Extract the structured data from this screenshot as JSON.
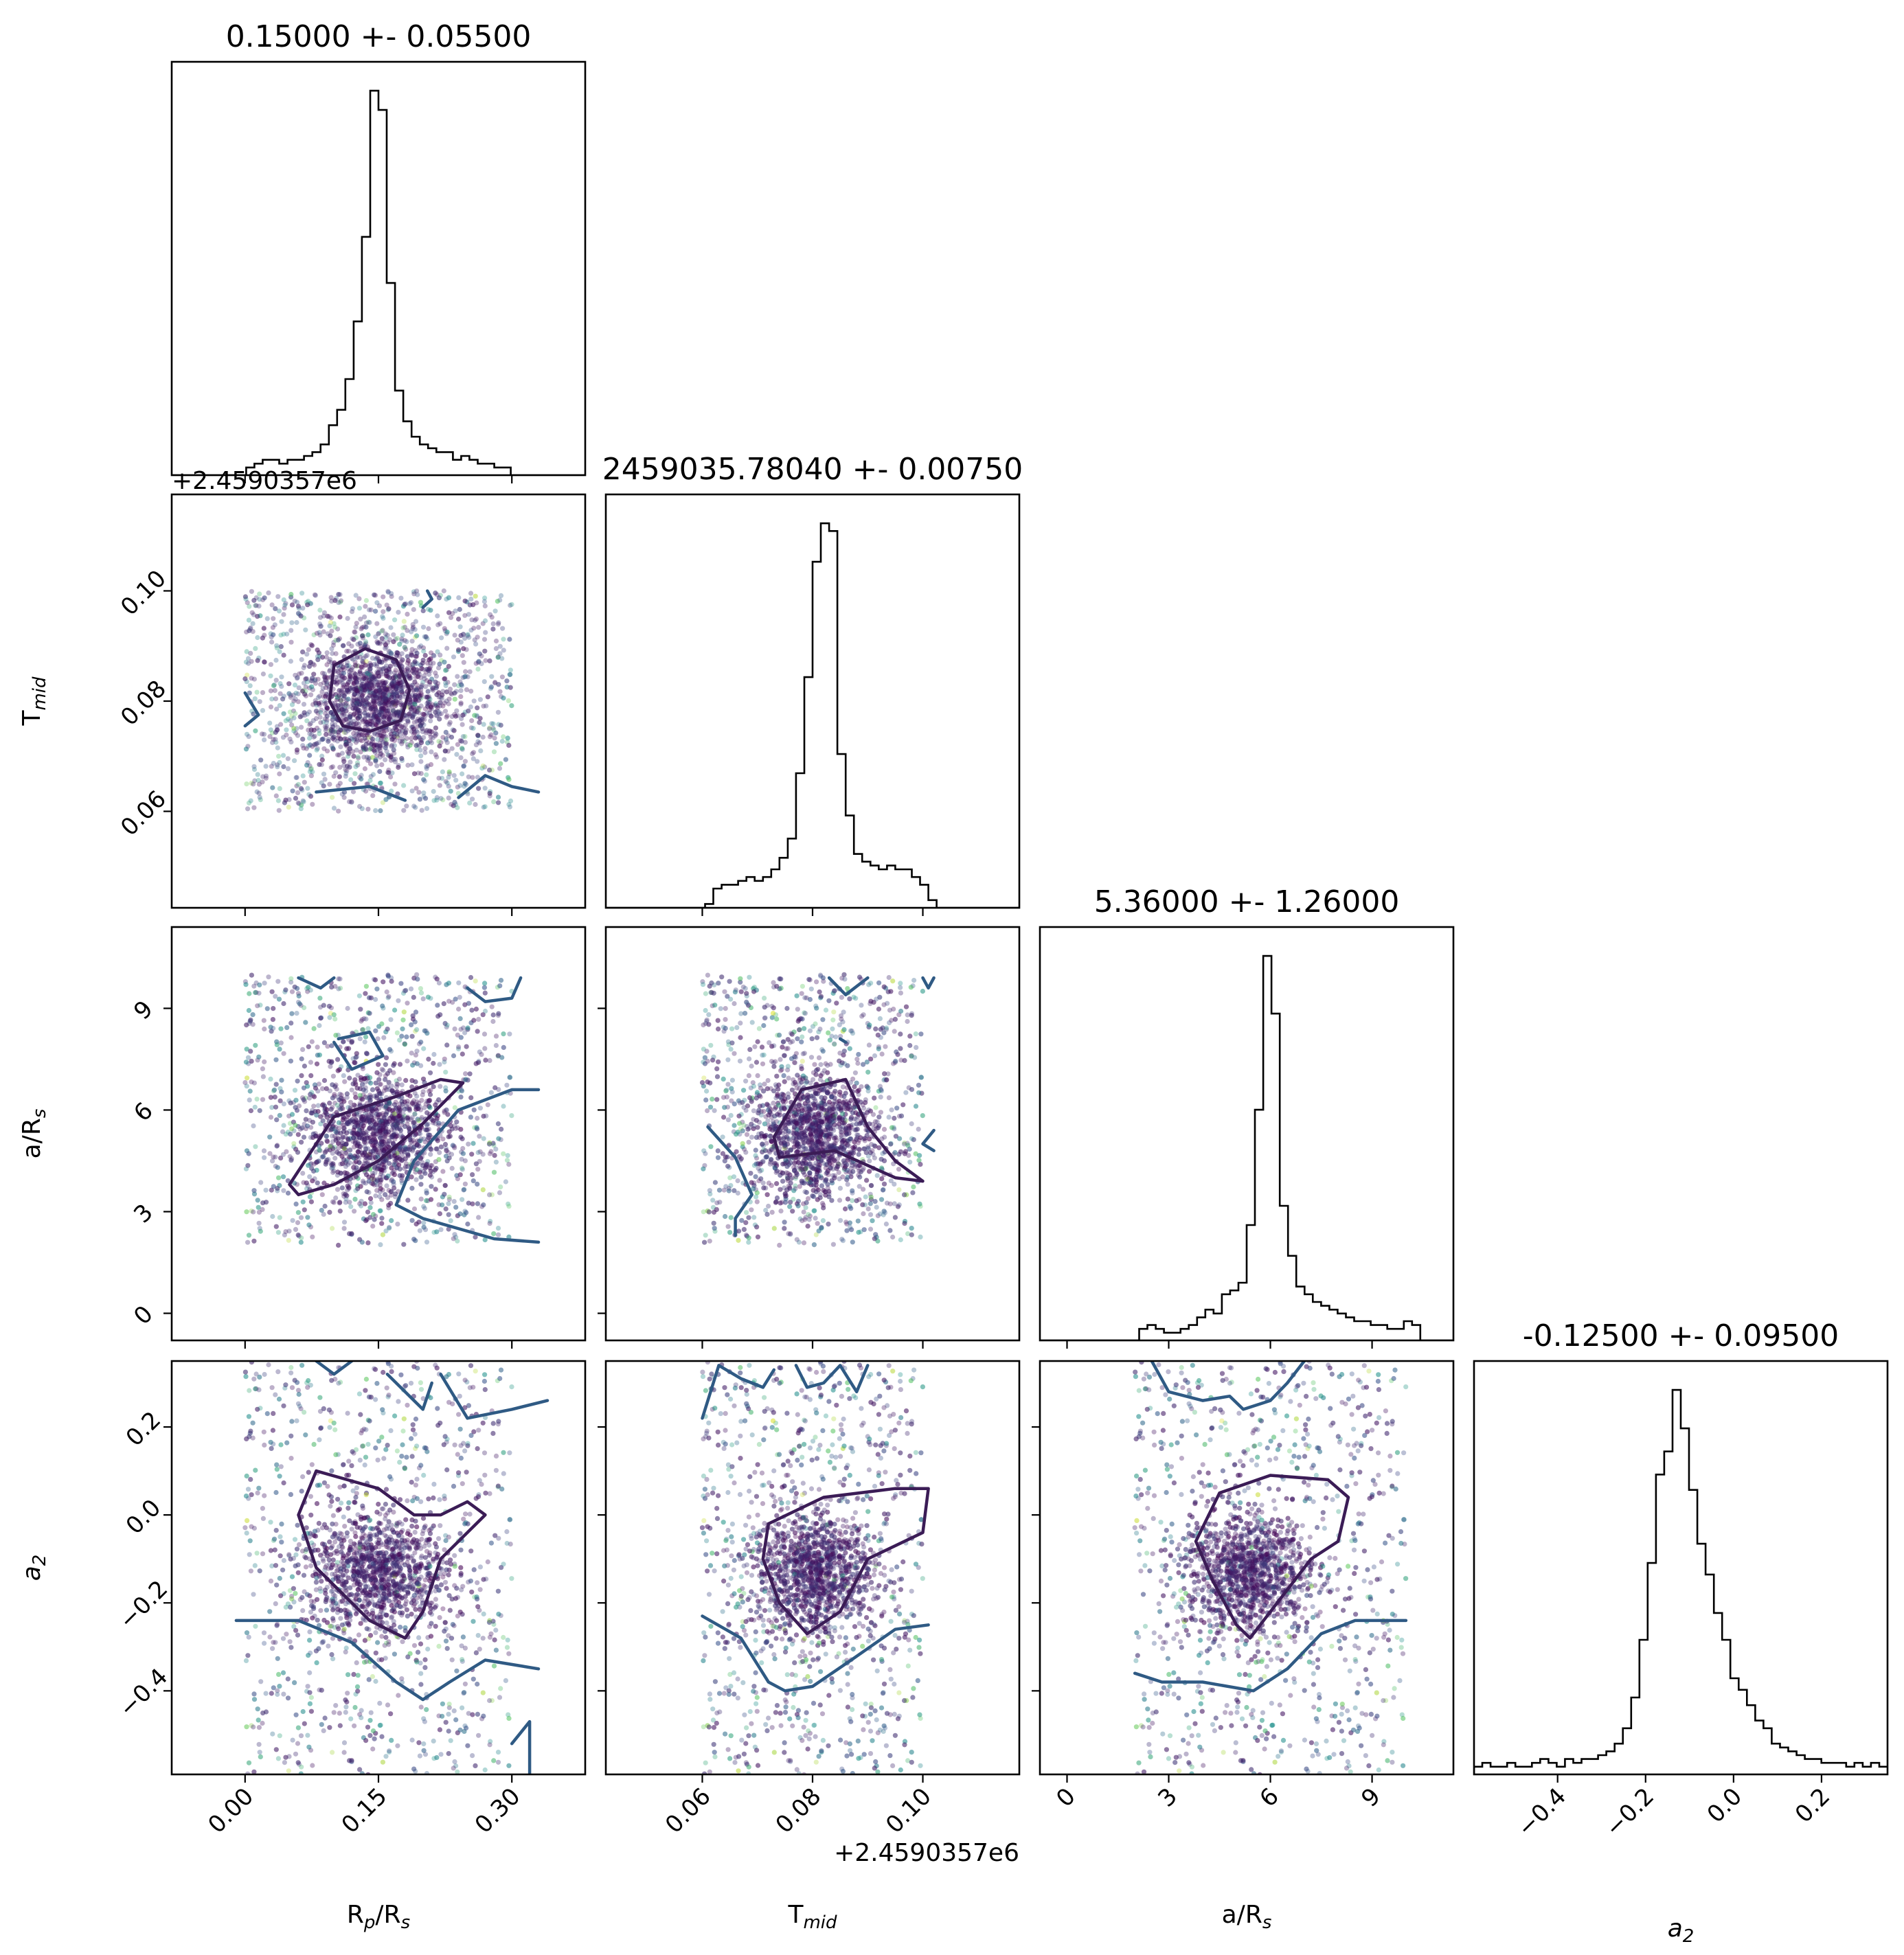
{
  "chart_data": {
    "type": "scatter",
    "kind": "corner plot",
    "parameters": [
      {
        "label_main": "R",
        "label_sub": "p",
        "label_tail": "/R",
        "label_tail_sub": "s",
        "title": "0.15000 +- 0.05500",
        "range": [
          -0.0825,
          0.3825
        ],
        "ticks": [
          0.0,
          0.15,
          0.3
        ],
        "tick_labels": [
          "0.00",
          "0.15",
          "0.30"
        ],
        "offset_text": "",
        "median": 0.15,
        "sigma": 0.055,
        "sample_range": [
          0.0,
          0.3
        ]
      },
      {
        "label_main": "T",
        "label_sub": "mid",
        "label_tail": "",
        "label_tail_sub": "",
        "title": "2459035.78040 +- 0.00750",
        "range": [
          0.0425,
          0.1175
        ],
        "ticks": [
          0.06,
          0.08,
          0.1
        ],
        "tick_labels": [
          "0.06",
          "0.08",
          "0.10"
        ],
        "offset_text": "+2.4590357e6",
        "median": 0.0804,
        "sigma": 0.0075,
        "sample_range": [
          0.06,
          0.1
        ]
      },
      {
        "label_main": "a/R",
        "label_sub": "s",
        "label_tail": "",
        "label_tail_sub": "",
        "title": "5.36000 +- 1.26000",
        "range": [
          -0.8,
          11.4
        ],
        "ticks": [
          0,
          3,
          6,
          9
        ],
        "tick_labels": [
          "0",
          "3",
          "6",
          "9"
        ],
        "offset_text": "",
        "median": 5.36,
        "sigma": 1.26,
        "sample_range": [
          2.0,
          10.0
        ]
      },
      {
        "label_main": "a",
        "label_sub": "2",
        "label_tail": "",
        "label_tail_sub": "",
        "italic": true,
        "title": "-0.12500 +- 0.09500",
        "range": [
          -0.59,
          0.35
        ],
        "ticks": [
          -0.4,
          -0.2,
          0.0,
          0.2
        ],
        "tick_labels": [
          "−0.4",
          "−0.2",
          "0.0",
          "0.2"
        ],
        "offset_text": "",
        "median": -0.125,
        "sigma": 0.095,
        "sample_range": [
          -0.6,
          0.35
        ]
      }
    ],
    "histograms": [
      {
        "param": 0,
        "bins": 50,
        "x_start": -0.0825,
        "x_end": 0.3825,
        "counts": [
          0,
          0,
          0,
          0,
          0,
          0,
          0,
          0,
          0,
          2,
          3,
          4,
          4,
          3,
          4,
          4,
          5,
          6,
          8,
          13,
          17,
          25,
          40,
          62,
          100,
          95,
          50,
          22,
          14,
          10,
          8,
          7,
          6,
          6,
          4,
          5,
          4,
          3,
          3,
          2,
          2,
          0,
          0,
          0,
          0,
          0,
          0,
          0,
          0,
          0
        ]
      },
      {
        "param": 1,
        "bins": 50,
        "x_start": 0.0425,
        "x_end": 0.1175,
        "counts": [
          0,
          0,
          0,
          0,
          0,
          0,
          0,
          0,
          0,
          0,
          0,
          0,
          1,
          5,
          6,
          6,
          7,
          8,
          7,
          8,
          10,
          13,
          18,
          35,
          60,
          90,
          100,
          98,
          40,
          24,
          14,
          12,
          11,
          10,
          11,
          10,
          10,
          8,
          6,
          2,
          0,
          0,
          0,
          0,
          0,
          0,
          0,
          0,
          0,
          0
        ]
      },
      {
        "param": 2,
        "bins": 50,
        "x_start": -0.8,
        "x_end": 11.4,
        "counts": [
          0,
          0,
          0,
          0,
          0,
          0,
          0,
          0,
          0,
          0,
          0,
          0,
          3,
          4,
          3,
          2,
          2,
          3,
          4,
          6,
          8,
          7,
          12,
          13,
          15,
          30,
          60,
          100,
          85,
          35,
          22,
          14,
          12,
          10,
          9,
          8,
          7,
          6,
          5,
          5,
          4,
          4,
          3,
          3,
          5,
          4,
          0,
          0,
          0,
          0
        ]
      },
      {
        "param": 3,
        "bins": 50,
        "x_start": -0.59,
        "x_end": 0.35,
        "counts": [
          2,
          3,
          2,
          2,
          3,
          2,
          2,
          3,
          4,
          3,
          2,
          4,
          3,
          4,
          4,
          5,
          6,
          8,
          12,
          20,
          35,
          55,
          78,
          84,
          100,
          90,
          74,
          60,
          52,
          42,
          35,
          25,
          22,
          18,
          14,
          12,
          8,
          7,
          6,
          5,
          4,
          4,
          3,
          3,
          3,
          2,
          3,
          2,
          3,
          2
        ]
      }
    ],
    "contour_colors": [
      "#3b1c56",
      "#2f5a84"
    ],
    "colormap": "viridis",
    "scatter_points_per_panel": 2800
  }
}
